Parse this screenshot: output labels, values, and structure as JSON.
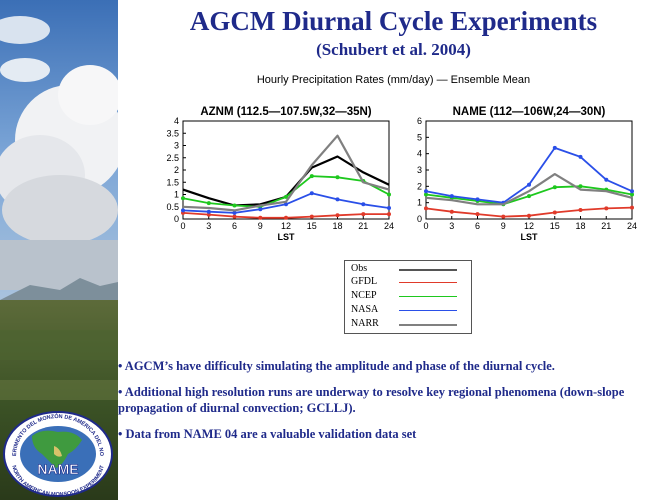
{
  "slide": {
    "title": "AGCM Diurnal Cycle Experiments",
    "subtitle": "(Schubert et al. 2004)",
    "figure_caption": "Hourly Precipitation Rates (mm/day) — Ensemble Mean"
  },
  "legend": {
    "items": [
      {
        "label": "Obs",
        "color": "#000000"
      },
      {
        "label": "GFDL",
        "color": "#e03a2a"
      },
      {
        "label": "NCEP",
        "color": "#1ec81e"
      },
      {
        "label": "NASA",
        "color": "#2a4fe8"
      },
      {
        "label": "NARR",
        "color": "#808080"
      }
    ]
  },
  "bullets": [
    "• AGCM’s have difficulty simulating the amplitude and phase of the diurnal cycle.",
    "• Additional high resolution runs are underway to resolve key regional phenomena (down-slope propagation of diurnal convection; GCLLJ).",
    "• Data from NAME 04 are a valuable validation data set"
  ],
  "logo": {
    "ring_top": "EXPERIMENTO DEL MONZÓN DE AMÉRICA DEL NORTE",
    "ring_bottom": "NORTH AMERICAN MONSOON EXPERIMENT",
    "center": "NAME"
  },
  "chart_data": [
    {
      "type": "line",
      "title": "AZNM (112.5—107.5W,32—35N)",
      "xlabel": "LST",
      "ylabel": "",
      "x": [
        0,
        3,
        6,
        9,
        12,
        15,
        18,
        21,
        24
      ],
      "x_ticks": [
        "0",
        "3",
        "6",
        "9",
        "12",
        "15",
        "18",
        "21",
        "24"
      ],
      "y_ticks": [
        "0",
        "0.5",
        "1",
        "1.5",
        "2",
        "2.5",
        "3",
        "3.5",
        "4"
      ],
      "ylim": [
        0,
        4
      ],
      "xlim": [
        0,
        24
      ],
      "series": [
        {
          "name": "Obs",
          "color": "#000000",
          "values": [
            1.2,
            0.85,
            0.55,
            0.6,
            0.9,
            2.1,
            2.55,
            1.9,
            1.4
          ]
        },
        {
          "name": "GFDL",
          "color": "#e03a2a",
          "values": [
            0.25,
            0.18,
            0.1,
            0.05,
            0.05,
            0.1,
            0.15,
            0.2,
            0.2
          ]
        },
        {
          "name": "NCEP",
          "color": "#1ec81e",
          "values": [
            0.85,
            0.65,
            0.55,
            0.5,
            0.9,
            1.75,
            1.7,
            1.55,
            1.0
          ]
        },
        {
          "name": "NASA",
          "color": "#2a4fe8",
          "values": [
            0.35,
            0.3,
            0.25,
            0.4,
            0.6,
            1.05,
            0.8,
            0.6,
            0.45
          ]
        },
        {
          "name": "NARR",
          "color": "#808080",
          "values": [
            0.5,
            0.45,
            0.35,
            0.55,
            0.7,
            2.2,
            3.4,
            1.5,
            1.2
          ]
        }
      ]
    },
    {
      "type": "line",
      "title": "NAME (112—106W,24—30N)",
      "xlabel": "LST",
      "ylabel": "",
      "x": [
        0,
        3,
        6,
        9,
        12,
        15,
        18,
        21,
        24
      ],
      "x_ticks": [
        "0",
        "3",
        "6",
        "9",
        "12",
        "15",
        "18",
        "21",
        "24"
      ],
      "y_ticks": [
        "0",
        "1",
        "2",
        "3",
        "4",
        "5",
        "6"
      ],
      "ylim": [
        0,
        6
      ],
      "xlim": [
        0,
        24
      ],
      "series": [
        {
          "name": "GFDL",
          "color": "#e03a2a",
          "values": [
            0.65,
            0.45,
            0.3,
            0.15,
            0.2,
            0.4,
            0.55,
            0.65,
            0.7
          ]
        },
        {
          "name": "NCEP",
          "color": "#1ec81e",
          "values": [
            1.5,
            1.3,
            1.1,
            0.9,
            1.4,
            1.95,
            2.0,
            1.8,
            1.5
          ]
        },
        {
          "name": "NASA",
          "color": "#2a4fe8",
          "values": [
            1.7,
            1.4,
            1.2,
            1.0,
            2.1,
            4.35,
            3.8,
            2.4,
            1.7
          ]
        },
        {
          "name": "NARR",
          "color": "#808080",
          "values": [
            1.3,
            1.15,
            0.9,
            0.9,
            1.7,
            2.75,
            1.8,
            1.7,
            1.3
          ]
        }
      ]
    }
  ]
}
